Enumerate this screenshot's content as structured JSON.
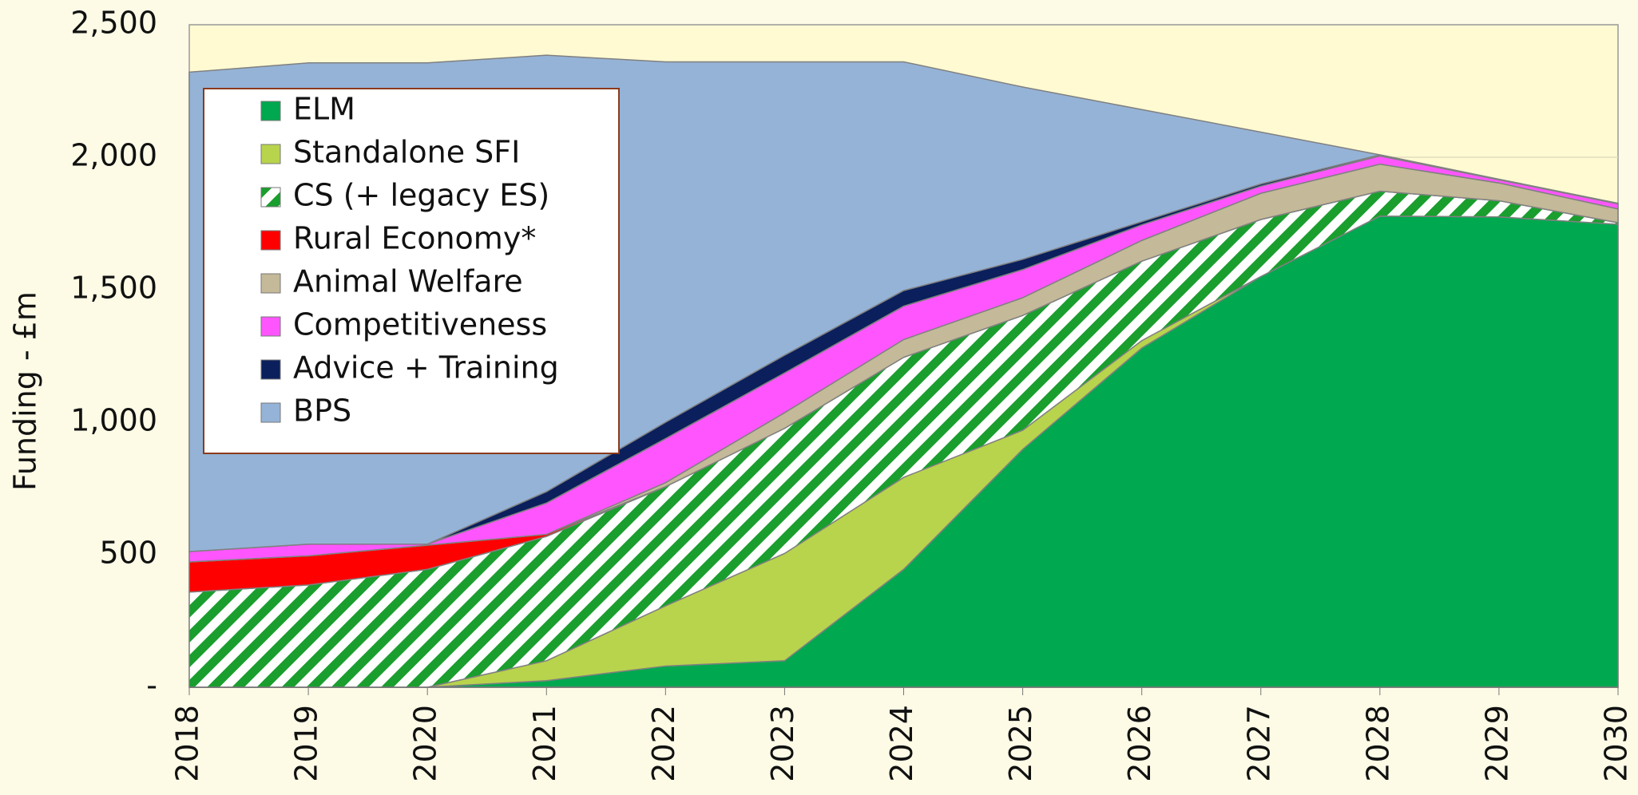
{
  "chart_data": {
    "type": "stacked_area",
    "y_label": "Funding - £m",
    "categories": [
      "2018",
      "2019",
      "2020",
      "2021",
      "2022",
      "2023",
      "2024",
      "2025",
      "2026",
      "2027",
      "2028",
      "2029",
      "2030"
    ],
    "series": [
      {
        "name": "ELM",
        "color": "#00a84f",
        "values": [
          0,
          0,
          0,
          25,
          80,
          100,
          445,
          898,
          1280,
          1550,
          1778,
          1775,
          1747
        ]
      },
      {
        "name": "Standalone SFI",
        "color": "#b8d44c",
        "values": [
          0,
          0,
          0,
          75,
          227,
          405,
          347,
          72,
          28,
          0,
          0,
          0,
          0
        ]
      },
      {
        "name": "CS (+ legacy ES)",
        "color": "#1a9e2e",
        "pattern": "diagonal",
        "values": [
          359,
          386,
          445,
          469,
          450,
          472,
          453,
          433,
          300,
          215,
          94,
          61,
          6
        ]
      },
      {
        "name": "Rural Economy*",
        "color": "#ff0000",
        "values": [
          114,
          110,
          91,
          8,
          0,
          0,
          0,
          0,
          0,
          0,
          0,
          0,
          0
        ]
      },
      {
        "name": "Animal Welfare",
        "color": "#c4b998",
        "values": [
          0,
          0,
          0,
          0,
          15,
          59,
          67,
          67,
          78,
          99,
          102,
          67,
          52
        ]
      },
      {
        "name": "Competitiveness",
        "color": "#ff55ff",
        "values": [
          39,
          44,
          4,
          118,
          166,
          150,
          126,
          106,
          59,
          27,
          31,
          12,
          19
        ]
      },
      {
        "name": "Advice + Training",
        "color": "#0a1f5c",
        "values": [
          0,
          0,
          0,
          43,
          62,
          67,
          59,
          39,
          12,
          8,
          4,
          2,
          2
        ]
      },
      {
        "name": "BPS",
        "color": "#95b3d7",
        "values": [
          1809,
          1816,
          1816,
          1647,
          1360,
          1107,
          863,
          650,
          423,
          196,
          0,
          0,
          0
        ]
      }
    ],
    "ylim": [
      0,
      2500
    ],
    "yticks": [
      {
        "value": 0,
        "label": "-"
      },
      500,
      {
        "value": 1000,
        "label": "1,000"
      },
      {
        "value": 1500,
        "label": "1,500"
      },
      {
        "value": 2000,
        "label": "2,000"
      },
      {
        "value": 2500,
        "label": "2,500"
      }
    ],
    "grid": true,
    "legend": "upper left"
  }
}
